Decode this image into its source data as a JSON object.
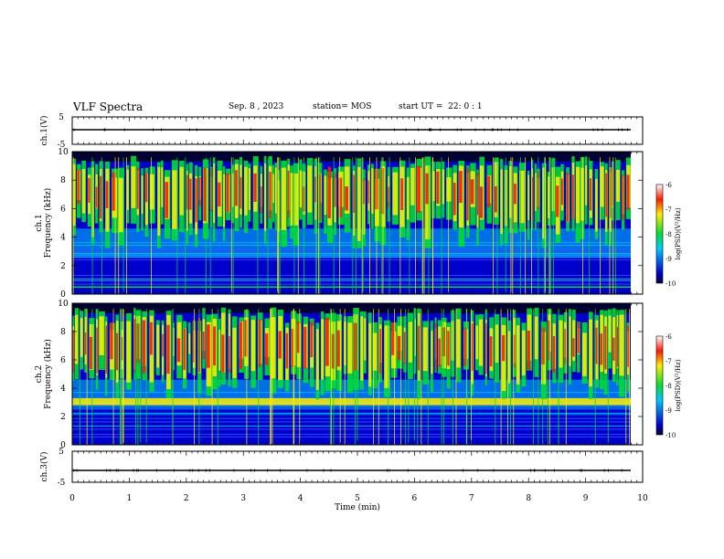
{
  "header": {
    "title": "VLF Spectra",
    "date": "Sep. 8 , 2023",
    "station": "station= MOS",
    "start": "start UT =  22: 0 : 1"
  },
  "colors": {
    "background": "#000033",
    "low": "#0000cc",
    "mid": "#00c8ff",
    "green": "#00dd33",
    "yellow": "#ffee00",
    "high": "#ff1a00"
  },
  "chart_data": [
    {
      "type": "line",
      "panel": "ch1-waveform",
      "ylabel": "ch.1(V)",
      "ylim": [
        -5,
        5
      ],
      "yticks": [
        "5",
        "-5"
      ],
      "series": [
        {
          "values_approx_constant": 0
        }
      ]
    },
    {
      "type": "heatmap",
      "panel": "ch1-spectrogram",
      "ylabel": "ch.1 Frequency (kHz)",
      "ylim": [
        0,
        10
      ],
      "yticks": [
        "0",
        "2",
        "4",
        "6",
        "8",
        "10"
      ],
      "colorbar": {
        "label": "log(PSD)(V²/Hz)",
        "range": [
          -10,
          -6
        ],
        "ticks": [
          "-6",
          "-7",
          "-8",
          "-9",
          "-10"
        ]
      },
      "bands_khz": {
        "intense_emission": [
          4.5,
          9.5
        ],
        "weak_band": [
          0,
          3.5
        ]
      }
    },
    {
      "type": "heatmap",
      "panel": "ch2-spectrogram",
      "ylabel": "ch.2 Frequency (kHz)",
      "ylim": [
        0,
        10
      ],
      "yticks": [
        "0",
        "2",
        "4",
        "6",
        "8",
        "10"
      ],
      "colorbar": {
        "label": "log(PSD)(V²/Hz)",
        "range": [
          -10,
          -6
        ],
        "ticks": [
          "-6",
          "-7",
          "-8",
          "-9",
          "-10"
        ]
      },
      "bands_khz": {
        "intense_emission": [
          4.5,
          9.5
        ],
        "yellow_line": [
          2.8,
          3.2
        ]
      }
    },
    {
      "type": "line",
      "panel": "ch3-waveform",
      "ylabel": "ch.3(V)",
      "ylim": [
        -5,
        5
      ],
      "yticks": [
        "5",
        "-5"
      ],
      "series": [
        {
          "values_approx_constant": 0
        }
      ]
    }
  ],
  "xaxis": {
    "label": "Time (min)",
    "xlim": [
      0,
      10
    ],
    "ticks": [
      "0",
      "1",
      "2",
      "3",
      "4",
      "5",
      "6",
      "7",
      "8",
      "9",
      "10"
    ]
  }
}
